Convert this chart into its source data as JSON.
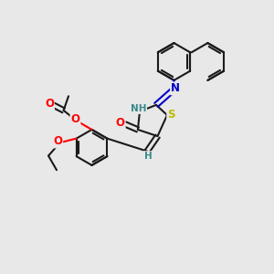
{
  "background_color": "#e8e8e8",
  "bond_color": "#1a1a1a",
  "bond_width": 1.5,
  "atom_colors": {
    "O": "#ff0000",
    "N": "#0000cc",
    "S": "#bbbb00",
    "H_label": "#3a8a8a",
    "C": "#1a1a1a"
  }
}
